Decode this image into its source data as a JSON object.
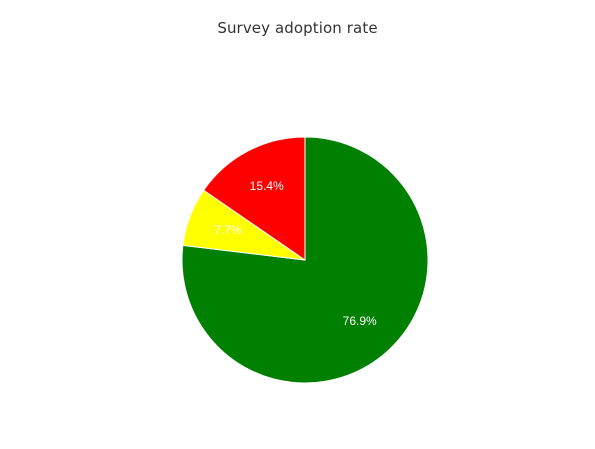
{
  "chart_data": {
    "type": "pie",
    "title": "Survey adoption rate",
    "slices": [
      {
        "value": 76.9,
        "label": "76.9%",
        "color": "#008000"
      },
      {
        "value": 7.7,
        "label": "7.7%",
        "color": "#ffff00"
      },
      {
        "value": 15.4,
        "label": "15.4%",
        "color": "#ff0000"
      }
    ],
    "legend": "none"
  }
}
